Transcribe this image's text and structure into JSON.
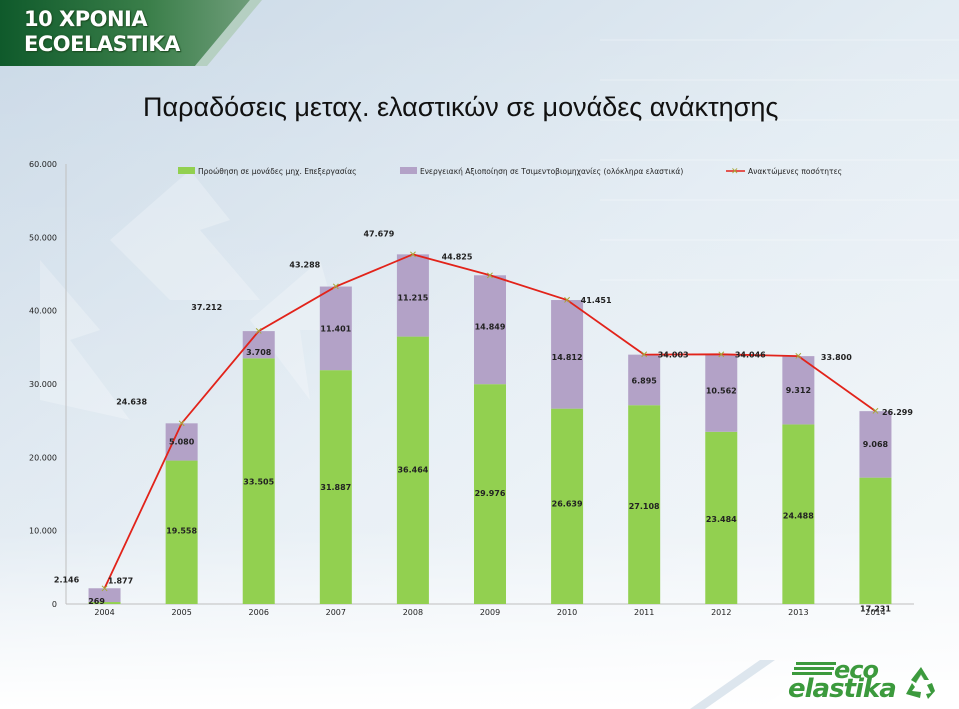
{
  "header": {
    "title_line1": "10 ΧΡΟΝΙΑ",
    "title_line2": "ECOELASTIKA"
  },
  "slide_title": "Παραδόσεις μεταχ. ελαστικών σε μονάδες ανάκτησης",
  "logo": {
    "word1": "eco",
    "word2": "elastika",
    "icon": "recycle-icon"
  },
  "colors": {
    "green": "#92d050",
    "purple": "#b3a2c7",
    "line": "#e2231a",
    "marker": "#a7a93a"
  },
  "chart_data": {
    "type": "bar",
    "stacked": true,
    "categories": [
      "2004",
      "2005",
      "2006",
      "2007",
      "2008",
      "2009",
      "2010",
      "2011",
      "2012",
      "2013",
      "2014"
    ],
    "series": [
      {
        "name": "Προώθηση σε μονάδες μηχ. Επεξεργασίας",
        "type": "bar",
        "values": [
          269,
          19558,
          33505,
          31887,
          36464,
          29976,
          26639,
          27108,
          23484,
          24488,
          17231
        ],
        "labels": [
          "269",
          "19.558",
          "33.505",
          "31.887",
          "36.464",
          "29.976",
          "26.639",
          "27.108",
          "23.484",
          "24.488",
          "17.231"
        ]
      },
      {
        "name": "Ενεργειακή Αξιοποίηση σε Τσιμεντοβιομηχανίες (ολόκληρα ελαστικά)",
        "type": "bar",
        "values": [
          1877,
          5080,
          3708,
          11401,
          11215,
          14849,
          14812,
          6895,
          10562,
          9312,
          9068
        ],
        "labels": [
          "1.877",
          "5.080",
          "3.708",
          "11.401",
          "11.215",
          "14.849",
          "14.812",
          "6.895",
          "10.562",
          "9.312",
          "9.068"
        ]
      },
      {
        "name": "Ανακτώμενες ποσότητες",
        "type": "line",
        "values": [
          2146,
          24638,
          37212,
          43288,
          47679,
          44825,
          41451,
          34003,
          34046,
          33800,
          26299
        ],
        "labels": [
          "2.146",
          "24.638",
          "37.212",
          "43.288",
          "47.679",
          "44.825",
          "41.451",
          "34.003",
          "34.046",
          "33.800",
          "26.299"
        ]
      }
    ],
    "y_ticks": [
      "0",
      "10.000",
      "20.000",
      "30.000",
      "40.000",
      "50.000",
      "60.000"
    ],
    "ylim": [
      0,
      60000
    ],
    "legend": "top"
  }
}
